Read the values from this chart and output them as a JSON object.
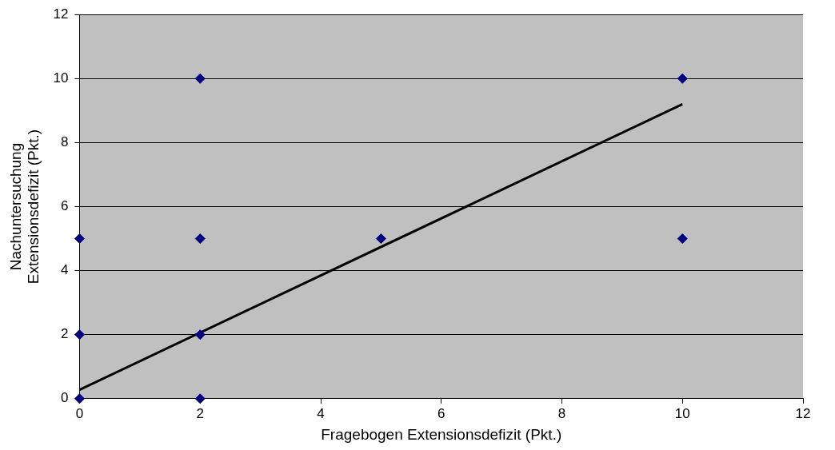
{
  "chart_data": {
    "type": "scatter",
    "xlabel": "Fragebogen Extensionsdefizit (Pkt.)",
    "ylabel": "Nachuntersuchung\nExtensionsdefizit (Pkt.)",
    "xlim": [
      0,
      12
    ],
    "xticks": [
      0,
      2,
      4,
      6,
      8,
      10,
      12
    ],
    "ylim": [
      0,
      12
    ],
    "yticks": [
      0,
      2,
      4,
      6,
      8,
      10,
      12
    ],
    "grid": "y",
    "legend": false,
    "marker": "diamond",
    "series": [
      {
        "color": "#000080",
        "x": [
          0,
          0,
          0,
          2,
          2,
          2,
          2,
          5,
          10,
          10
        ],
        "values": [
          0,
          2,
          5,
          10,
          5,
          2,
          0,
          5,
          10,
          5
        ]
      },
      {
        "type": "line",
        "marker": "none",
        "color": "#000000",
        "x": [
          0,
          10
        ],
        "values": [
          0.28,
          9.2
        ]
      }
    ]
  }
}
